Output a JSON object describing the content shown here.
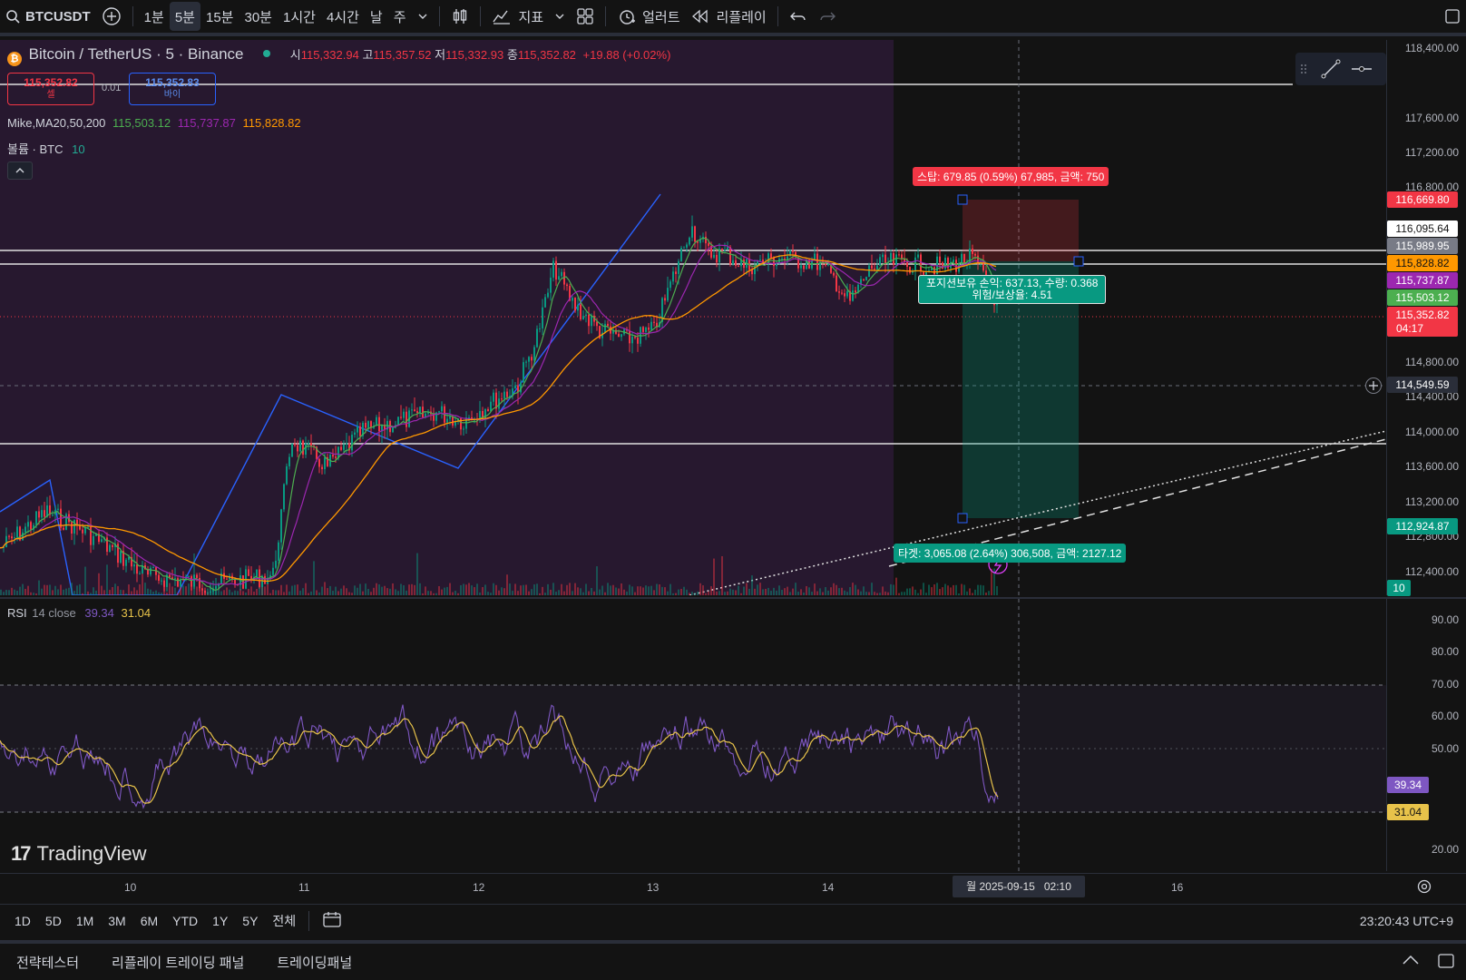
{
  "topbar": {
    "symbol": "BTCUSDT",
    "intervals": [
      "1분",
      "5분",
      "15분",
      "30분",
      "1시간",
      "4시간",
      "날",
      "주"
    ],
    "active_interval": "5분",
    "indicators_label": "지표",
    "alert_label": "얼러트",
    "replay_label": "리플레이"
  },
  "legend": {
    "title": "Bitcoin / TetherUS · 5 · Binance",
    "o_label": "시",
    "o_value": "115,332.94",
    "h_label": "고",
    "h_value": "115,357.52",
    "l_label": "저",
    "l_value": "115,332.93",
    "c_label": "종",
    "c_value": "115,352.82",
    "change": "+19.88 (+0.02%)",
    "sell_price": "115,352.82",
    "sell_label": "셀",
    "spread": "0.01",
    "buy_price": "115,352.83",
    "buy_label": "바이",
    "ma_label": "Mike,MA20,50,200",
    "ma1": "115,503.12",
    "ma2": "115,737.87",
    "ma3": "115,828.82",
    "volume_label": "볼륨 · BTC",
    "volume_value": "10",
    "rsi_label": "RSI",
    "rsi_params": "14 close",
    "rsi_value": "39.34",
    "rsi_ma_value": "31.04"
  },
  "position": {
    "stop_label": "스탑: 679.85 (0.59%) 67,985, 금액: 750",
    "info_line1": "포지션보유 손익: 637.13, 수량: 0.368",
    "info_line2": "위험/보상율: 4.51",
    "target_label": "타겟: 3,065.08 (2.64%) 306,508, 금액: 2127.12"
  },
  "price_axis": {
    "labels": [
      "118,400.00",
      "117,600.00",
      "117,200.00",
      "116,800.00",
      "114,800.00",
      "114,400.00",
      "114,000.00",
      "113,600.00",
      "113,200.00",
      "112,800.00",
      "112,400.00"
    ],
    "tags": [
      {
        "text": "116,669.80",
        "color": "#f23645"
      },
      {
        "text": "116,095.64",
        "color": "#ffffff"
      },
      {
        "text": "115,989.95",
        "color": "#787b86"
      },
      {
        "text": "115,828.82",
        "color": "#ff9800"
      },
      {
        "text": "115,737.87",
        "color": "#9c27b0"
      },
      {
        "text": "115,503.12",
        "color": "#4caf50"
      },
      {
        "text": "115,352.82",
        "color": "#f23645"
      },
      {
        "text": "04:17",
        "color": "#f23645"
      },
      {
        "text": "114,549.59",
        "color": "#2a2e39"
      },
      {
        "text": "112,924.87",
        "color": "#089981"
      },
      {
        "text": "10",
        "color": "#089981"
      }
    ]
  },
  "rsi_axis": {
    "labels": [
      "90.00",
      "80.00",
      "70.00",
      "60.00",
      "50.00",
      "20.00"
    ],
    "rsi_tag": "39.34",
    "rsi_ma_tag": "31.04"
  },
  "time_axis": {
    "labels": [
      "10",
      "11",
      "12",
      "13",
      "14",
      "16"
    ],
    "cursor_label": "월 2025-09-15   02:10"
  },
  "range_bar": {
    "ranges": [
      "1D",
      "5D",
      "1M",
      "3M",
      "6M",
      "YTD",
      "1Y",
      "5Y",
      "전체"
    ],
    "clock": "23:20:43 UTC+9"
  },
  "bottom_tabs": [
    "전략테스터",
    "리플레이 트레이딩 패널",
    "트레이딩패널"
  ],
  "watermark": "TradingView",
  "colors": {
    "background": "#131313",
    "session_bg": "#2b1a35",
    "up": "#089981",
    "down": "#f23645",
    "ma20": "#4caf50",
    "ma50": "#9c27b0",
    "ma200": "#ff9800",
    "rsi": "#7e57c2",
    "rsi_ma": "#e8c34a",
    "zigzag": "#2962ff"
  }
}
